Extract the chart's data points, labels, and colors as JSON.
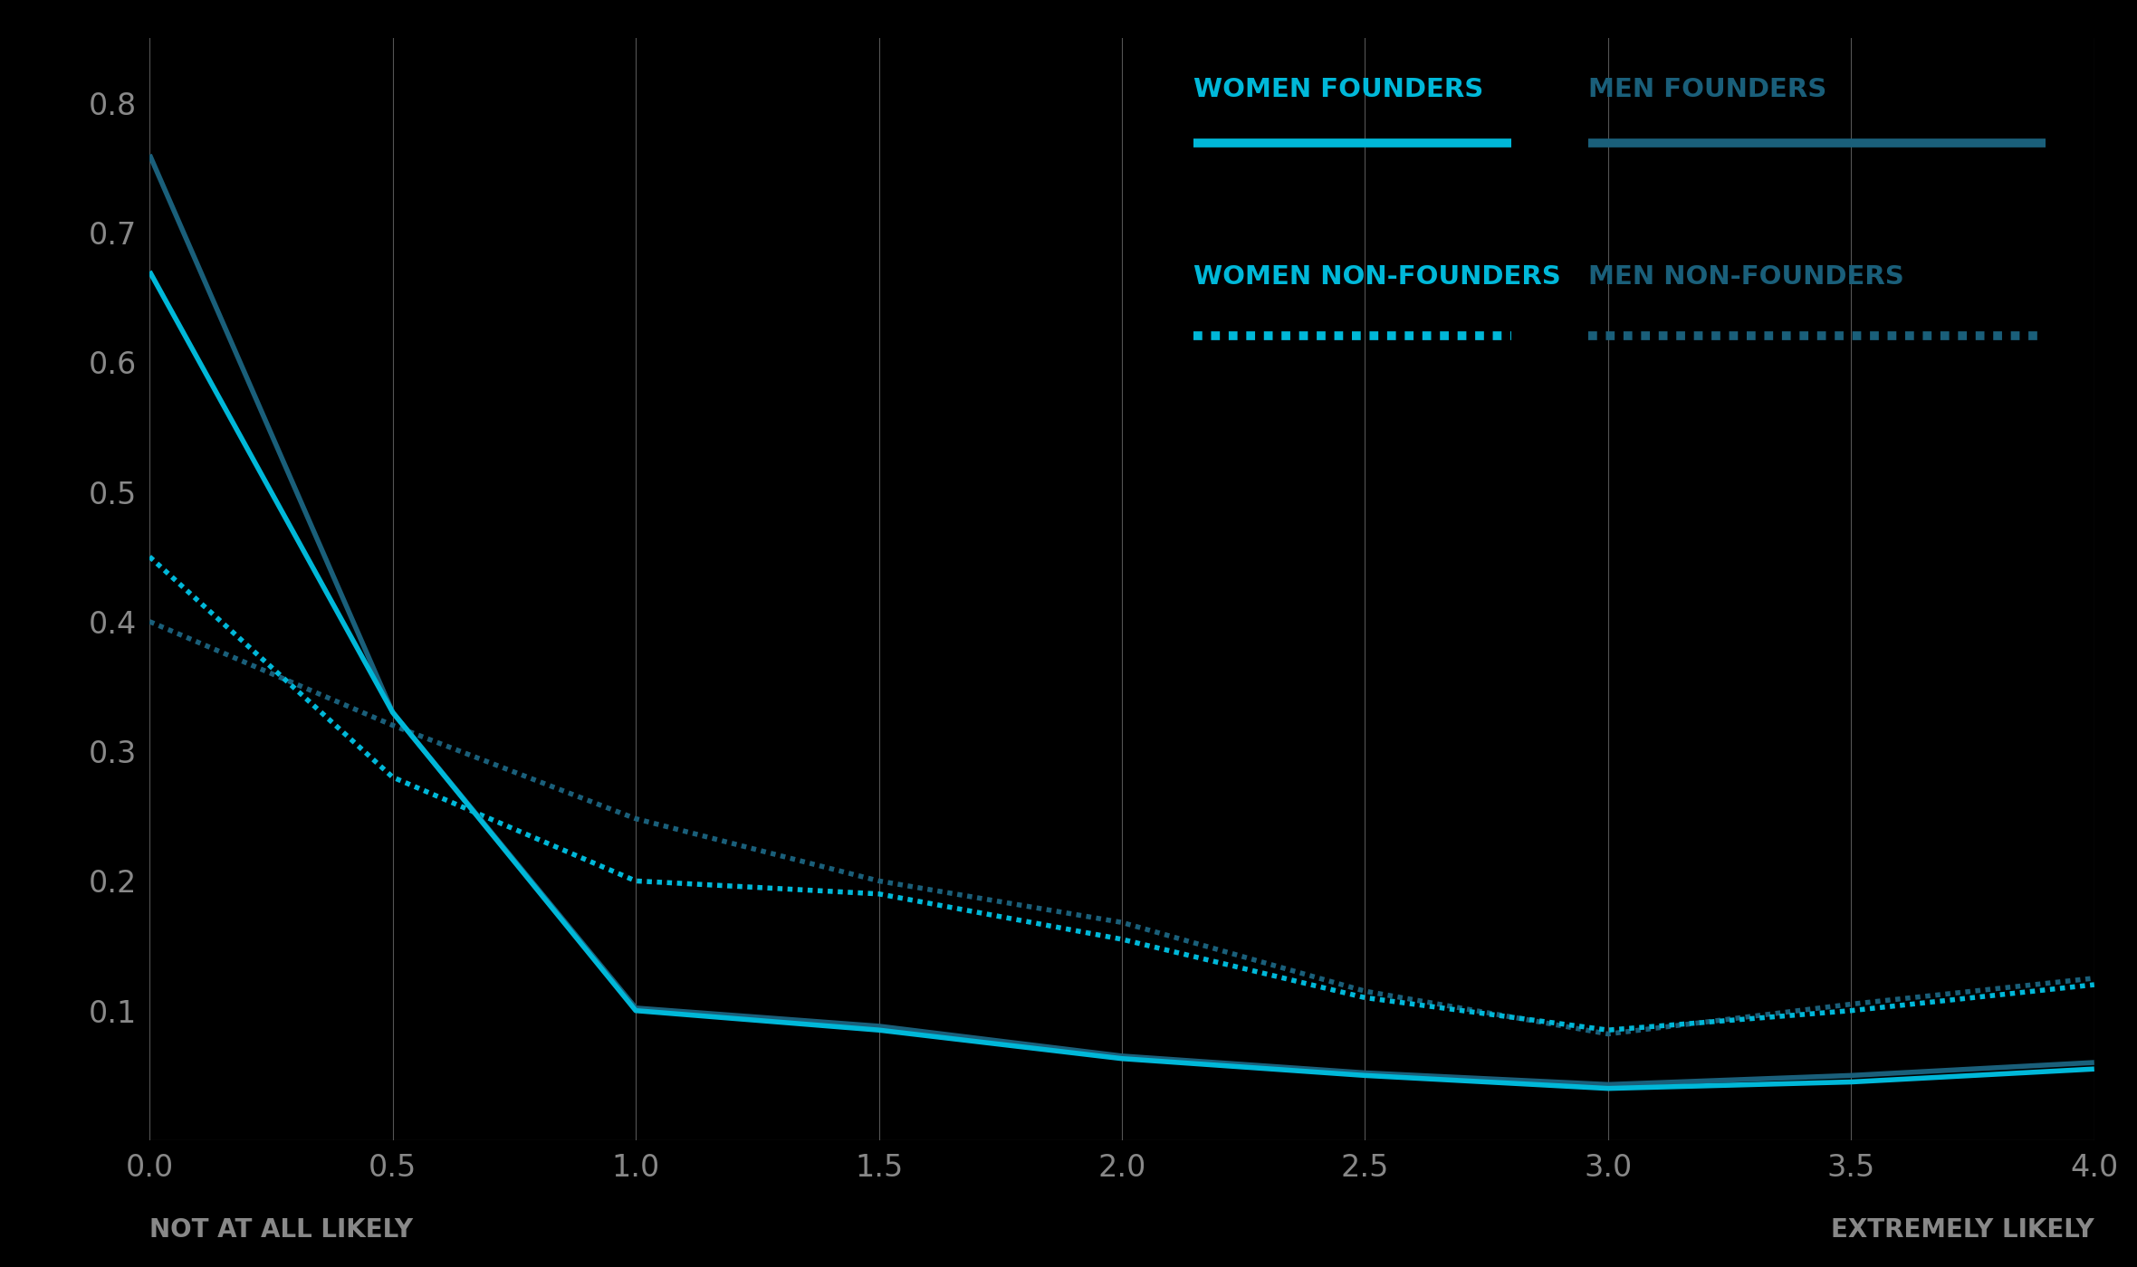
{
  "background_color": "#000000",
  "text_color": "#888888",
  "x_values": [
    0.0,
    0.5,
    1.0,
    1.5,
    2.0,
    2.5,
    3.0,
    3.5,
    4.0
  ],
  "women_founders": [
    0.67,
    0.33,
    0.1,
    0.085,
    0.063,
    0.05,
    0.04,
    0.045,
    0.055
  ],
  "men_founders": [
    0.76,
    0.33,
    0.102,
    0.088,
    0.065,
    0.052,
    0.043,
    0.05,
    0.06
  ],
  "women_non_founders": [
    0.45,
    0.28,
    0.2,
    0.19,
    0.155,
    0.11,
    0.085,
    0.1,
    0.12
  ],
  "men_non_founders": [
    0.4,
    0.32,
    0.248,
    0.2,
    0.168,
    0.115,
    0.082,
    0.105,
    0.125
  ],
  "women_founders_color": "#00b8d9",
  "men_founders_color": "#1a5f7a",
  "women_non_founders_color": "#00b8d9",
  "men_non_founders_color": "#1a5f7a",
  "legend_text_women_founders": "WOMEN FOUNDERS",
  "legend_text_men_founders": "MEN FOUNDERS",
  "legend_text_women_non_founders": "WOMEN NON-FOUNDERS",
  "legend_text_men_non_founders": "MEN NON-FOUNDERS",
  "ylim": [
    0.0,
    0.85
  ],
  "xlim": [
    0.0,
    4.0
  ],
  "yticks": [
    0.1,
    0.2,
    0.3,
    0.4,
    0.5,
    0.6,
    0.7,
    0.8
  ],
  "xticks": [
    0.0,
    0.5,
    1.0,
    1.5,
    2.0,
    2.5,
    3.0,
    3.5,
    4.0
  ],
  "xlabel_left": "NOT AT ALL LIKELY",
  "xlabel_right": "EXTREMELY LIKELY",
  "line_width": 4.0,
  "figsize": [
    23.6,
    14.0
  ],
  "dpi": 100
}
